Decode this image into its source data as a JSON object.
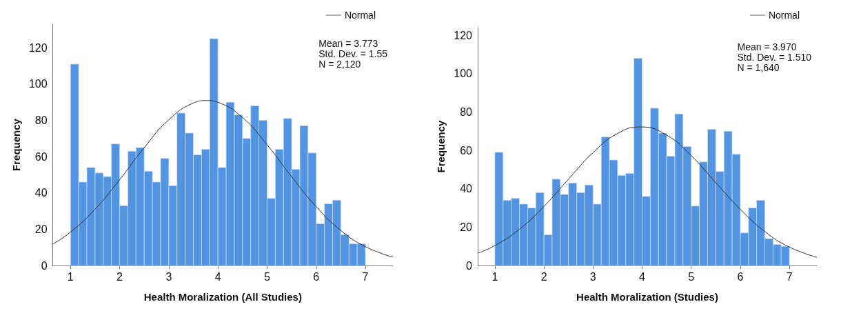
{
  "chart_data": [
    {
      "type": "histogram",
      "xlabel": "Health Moralization (All Studies)",
      "ylabel": "Frequency",
      "bins": [
        1,
        1.167,
        1.333,
        1.5,
        1.667,
        1.833,
        2,
        2.167,
        2.333,
        2.5,
        2.667,
        2.833,
        3,
        3.167,
        3.333,
        3.5,
        3.667,
        3.833,
        4,
        4.167,
        4.333,
        4.5,
        4.667,
        4.833,
        5,
        5.167,
        5.333,
        5.5,
        5.667,
        5.833,
        6,
        6.167,
        6.333,
        6.5,
        6.667,
        6.833,
        7
      ],
      "values": [
        111,
        46,
        54,
        51,
        49,
        67,
        33,
        63,
        65,
        52,
        46,
        59,
        44,
        84,
        73,
        61,
        64,
        125,
        54,
        90,
        83,
        70,
        88,
        80,
        37,
        64,
        81,
        53,
        77,
        62,
        23,
        34,
        36,
        17,
        12,
        12
      ],
      "color": "#5294e2",
      "series": [
        {
          "type": "line",
          "name": "Normal",
          "color": "#333333",
          "x": [
            0.64,
            1,
            1.5,
            2,
            2.5,
            3,
            3.5,
            3.773,
            4,
            4.5,
            5,
            5.5,
            6,
            6.5,
            7,
            7.56
          ],
          "values": [
            11.8,
            18.4,
            31,
            47.3,
            64.9,
            80.3,
            89.5,
            90.9,
            89.9,
            81.5,
            66.5,
            48.9,
            32.4,
            19.3,
            10.4,
            4.6
          ]
        }
      ],
      "annotations": [
        "Mean = 3.773",
        "Std. Dev. = 1.55",
        "N = 2,120"
      ],
      "xlim": [
        0.64,
        7.56
      ],
      "xticks": [
        1,
        2,
        3,
        4,
        5,
        6,
        7
      ],
      "ylim": [
        0,
        133
      ],
      "yticks": [
        0,
        20,
        40,
        60,
        80,
        100,
        120
      ],
      "grid": false,
      "legend": "top right"
    },
    {
      "type": "histogram",
      "xlabel": "Health Moralization (Studies)",
      "ylabel": "Frequency",
      "bins": [
        1,
        1.167,
        1.333,
        1.5,
        1.667,
        1.833,
        2,
        2.167,
        2.333,
        2.5,
        2.667,
        2.833,
        3,
        3.167,
        3.333,
        3.5,
        3.667,
        3.833,
        4,
        4.167,
        4.333,
        4.5,
        4.667,
        4.833,
        5,
        5.167,
        5.333,
        5.5,
        5.667,
        5.833,
        6,
        6.167,
        6.333,
        6.5,
        6.667,
        6.833,
        7
      ],
      "values": [
        59,
        34,
        35,
        32,
        30,
        38,
        16,
        45,
        37,
        43,
        38,
        42,
        32,
        67,
        55,
        47,
        48,
        108,
        36,
        82,
        69,
        57,
        79,
        62,
        31,
        54,
        71,
        49,
        70,
        58,
        17,
        30,
        34,
        14,
        11,
        10
      ],
      "color": "#5294e2",
      "series": [
        {
          "type": "line",
          "name": "Normal",
          "color": "#333333",
          "x": [
            0.65,
            1,
            1.5,
            2,
            2.5,
            3,
            3.5,
            3.97,
            4.5,
            5,
            5.5,
            6,
            6.5,
            7,
            7.56
          ],
          "values": [
            6.4,
            10.4,
            18.9,
            30.8,
            45,
            58.8,
            68.8,
            72.2,
            67.9,
            57.2,
            43.2,
            29.3,
            17.7,
            9.6,
            4.3
          ]
        }
      ],
      "annotations": [
        "Mean = 3.970",
        "Std. Dev. = 1.510",
        "N = 1,640"
      ],
      "xlim": [
        0.65,
        7.56
      ],
      "xticks": [
        1,
        2,
        3,
        4,
        5,
        6,
        7
      ],
      "ylim": [
        0,
        124
      ],
      "yticks": [
        0,
        20,
        40,
        60,
        80,
        100,
        120
      ],
      "grid": false,
      "legend": "top right"
    }
  ]
}
